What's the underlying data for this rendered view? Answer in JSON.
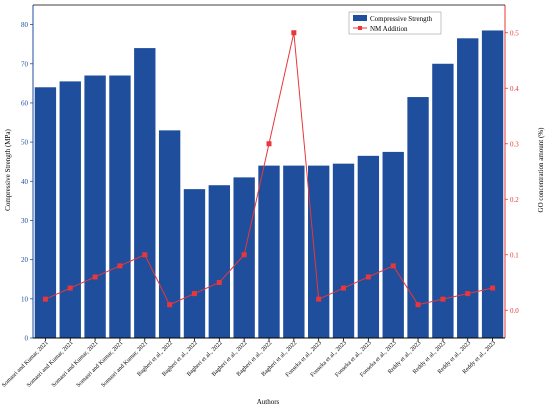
{
  "chart_data": {
    "type": "bar",
    "xlabel": "Authors",
    "ylabel_left": "Compressive Strength (MPa)",
    "ylabel_right": "GO concentration amount (%)",
    "ylim_left": [
      0,
      85
    ],
    "ylim_right": [
      -0.05,
      0.55
    ],
    "yticks_left": [
      0,
      10,
      20,
      30,
      40,
      50,
      60,
      70,
      80
    ],
    "yticks_right": [
      0.0,
      0.1,
      0.2,
      0.3,
      0.4,
      0.5
    ],
    "legend_position": "top-right",
    "grid": false,
    "categories": [
      "Somasri and Kumar, 2021",
      "Somasri and Kumar, 2021",
      "Somasri and Kumar, 2021",
      "Somasri and Kumar, 2021",
      "Somasri and Kumar, 2021",
      "Bagheri et al., 2022",
      "Bagheri et al., 2022",
      "Bagheri et al., 2022",
      "Bagheri et al., 2022",
      "Bagheri et al., 2022",
      "Bagheri et al., 2022",
      "Fonseka et al., 2023",
      "Fonseka et al., 2023",
      "Fonseka et al., 2023",
      "Fonseka et al., 2023",
      "Reddy et al., 2023",
      "Reddy et al., 2023",
      "Reddy et al., 2023",
      "Reddy et al., 2023"
    ],
    "series": [
      {
        "name": "Compressive Strength",
        "type": "bar",
        "axis": "left",
        "color": "#1f4e9c",
        "values": [
          64,
          65.5,
          67,
          67,
          74,
          53,
          38,
          39,
          41,
          44,
          44,
          44,
          44.5,
          46.5,
          47.5,
          61.5,
          70,
          76.5,
          78.5
        ]
      },
      {
        "name": "NM Addition",
        "type": "line",
        "axis": "right",
        "color": "#e8373a",
        "values": [
          0.02,
          0.04,
          0.06,
          0.08,
          0.1,
          0.01,
          0.03,
          0.05,
          0.1,
          0.3,
          0.5,
          0.02,
          0.04,
          0.06,
          0.08,
          0.01,
          0.02,
          0.03,
          0.04
        ]
      }
    ]
  }
}
